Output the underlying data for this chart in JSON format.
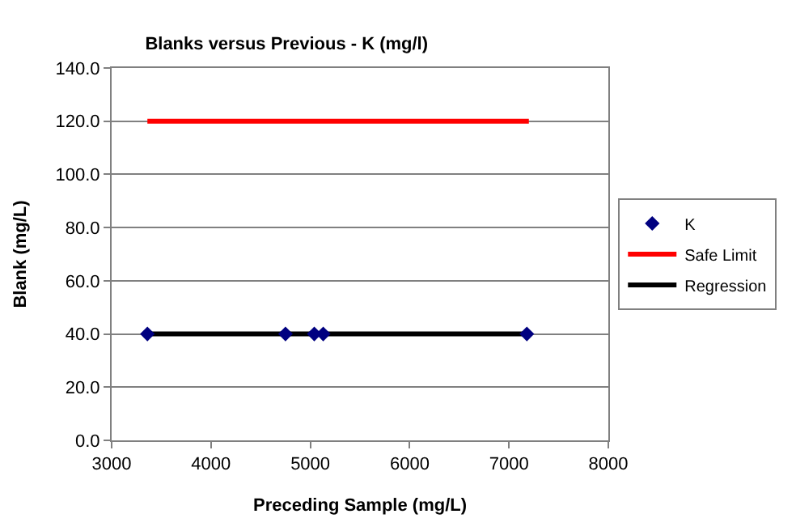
{
  "chart_data": {
    "type": "scatter",
    "title": "Blanks versus Previous - K (mg/l)",
    "xlabel": "Preceding Sample (mg/L)",
    "ylabel": "Blank (mg/L)",
    "series": [
      {
        "name": "K",
        "color": "#000080",
        "marker": "diamond",
        "x": [
          3360,
          4750,
          5040,
          5130,
          7180
        ],
        "values": [
          40,
          40,
          40,
          40,
          40
        ]
      },
      {
        "name": "Safe Limit",
        "type": "line",
        "color": "#ff0000",
        "marker": "none",
        "x": [
          3360,
          7200
        ],
        "values": [
          120,
          120
        ]
      },
      {
        "name": "Regression",
        "type": "line",
        "color": "#000000",
        "marker": "none",
        "x": [
          3360,
          7180
        ],
        "values": [
          40,
          40
        ]
      }
    ],
    "xlim": [
      3000,
      8000
    ],
    "xticks": [
      3000,
      4000,
      5000,
      6000,
      7000,
      8000
    ],
    "ylim": [
      0,
      140
    ],
    "yticks": [
      {
        "value": 0,
        "label": "0.0"
      },
      {
        "value": 20,
        "label": "20.0"
      },
      {
        "value": 40,
        "label": "40.0"
      },
      {
        "value": 60,
        "label": "60.0"
      },
      {
        "value": 80,
        "label": "80.0"
      },
      {
        "value": 100,
        "label": "100.0"
      },
      {
        "value": 120,
        "label": "120.0"
      },
      {
        "value": 140,
        "label": "140.0"
      }
    ],
    "grid": "y",
    "legend": "right"
  }
}
